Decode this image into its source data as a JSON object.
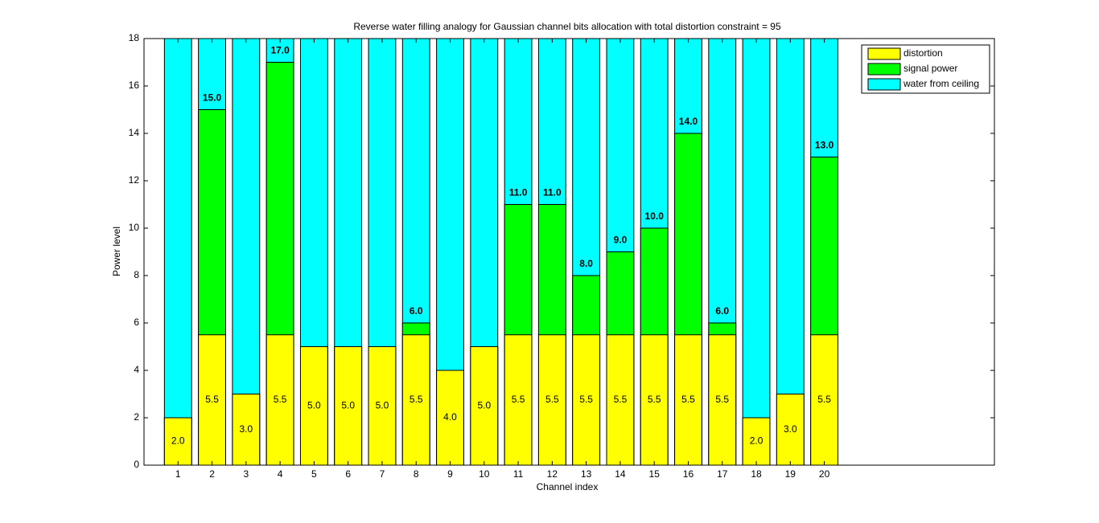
{
  "chart_data": {
    "type": "bar",
    "title": "Reverse water filling analogy for Gaussian channel bits allocation with total distortion constraint = 95",
    "xlabel": "Channel index",
    "ylabel": "Power level",
    "x": [
      1,
      2,
      3,
      4,
      5,
      6,
      7,
      8,
      9,
      10,
      11,
      12,
      13,
      14,
      15,
      16,
      17,
      18,
      19,
      20
    ],
    "series": [
      {
        "name": "water from ceiling",
        "color": "#00ffff",
        "values": [
          18,
          18,
          18,
          18,
          18,
          18,
          18,
          18,
          18,
          18,
          18,
          18,
          18,
          18,
          18,
          18,
          18,
          18,
          18,
          18
        ]
      },
      {
        "name": "signal power",
        "color": "#00ff00",
        "values": [
          2,
          15,
          3,
          17,
          5,
          5,
          5,
          6,
          4,
          5,
          11,
          11,
          8,
          9,
          10,
          14,
          6,
          2,
          3,
          13
        ],
        "value_labels": [
          null,
          "15.0",
          null,
          "17.0",
          null,
          null,
          null,
          "6.0",
          null,
          null,
          "11.0",
          "11.0",
          "8.0",
          "9.0",
          "10.0",
          "14.0",
          "6.0",
          null,
          null,
          "13.0"
        ]
      },
      {
        "name": "distortion",
        "color": "#ffff00",
        "values": [
          2,
          5.5,
          3,
          5.5,
          5,
          5,
          5,
          5.5,
          4,
          5,
          5.5,
          5.5,
          5.5,
          5.5,
          5.5,
          5.5,
          5.5,
          2,
          3,
          5.5
        ],
        "value_labels": [
          "2.0",
          "5.5",
          "3.0",
          "5.5",
          "5.0",
          "5.0",
          "5.0",
          "5.5",
          "4.0",
          "5.0",
          "5.5",
          "5.5",
          "5.5",
          "5.5",
          "5.5",
          "5.5",
          "5.5",
          "2.0",
          "3.0",
          "5.5"
        ]
      }
    ],
    "legend_order": [
      "distortion",
      "signal power",
      "water from ceiling"
    ],
    "legend": "upper right",
    "xlim": [
      0,
      25
    ],
    "xticks": [
      1,
      2,
      3,
      4,
      5,
      6,
      7,
      8,
      9,
      10,
      11,
      12,
      13,
      14,
      15,
      16,
      17,
      18,
      19,
      20
    ],
    "ylim": [
      0,
      18
    ],
    "yticks": [
      0,
      2,
      4,
      6,
      8,
      10,
      12,
      14,
      16,
      18
    ]
  }
}
